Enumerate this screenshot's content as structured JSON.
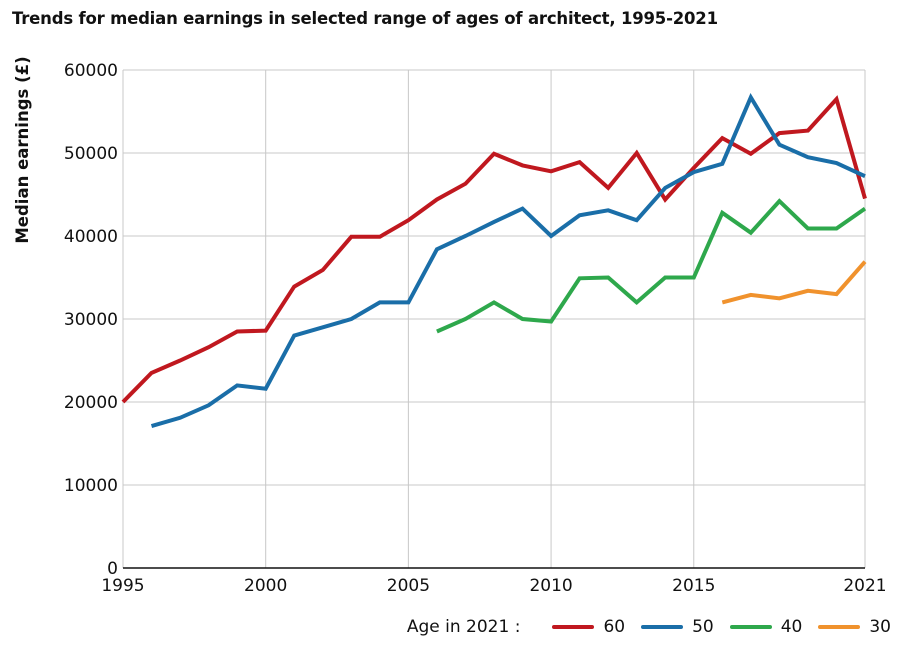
{
  "title": "Trends for median earnings in selected range of ages of architect, 1995-2021",
  "legend": {
    "title": "Age in 2021 :"
  },
  "colors": {
    "grid": "#c8c8c8",
    "axis": "#111111"
  },
  "chart_data": {
    "type": "line",
    "title": "Trends for median earnings in selected range of ages of architect, 1995-2021",
    "xlabel": "",
    "ylabel": "Median earnings (£)",
    "xlim": [
      1995,
      2021
    ],
    "ylim": [
      0,
      60000
    ],
    "x_ticks": [
      1995,
      2000,
      2005,
      2010,
      2015,
      2021
    ],
    "y_ticks": [
      0,
      10000,
      20000,
      30000,
      40000,
      50000,
      60000
    ],
    "grid": true,
    "legend_position": "bottom-right",
    "series": [
      {
        "name": "60",
        "color": "#c0181f",
        "points": [
          [
            1995,
            20000
          ],
          [
            1996,
            23500
          ],
          [
            1997,
            25000
          ],
          [
            1998,
            26600
          ],
          [
            1999,
            28500
          ],
          [
            2000,
            28600
          ],
          [
            2001,
            33900
          ],
          [
            2002,
            35900
          ],
          [
            2003,
            39900
          ],
          [
            2004,
            39900
          ],
          [
            2005,
            41900
          ],
          [
            2006,
            44400
          ],
          [
            2007,
            46300
          ],
          [
            2008,
            49900
          ],
          [
            2009,
            48500
          ],
          [
            2010,
            47800
          ],
          [
            2011,
            48900
          ],
          [
            2012,
            45800
          ],
          [
            2013,
            50000
          ],
          [
            2014,
            44400
          ],
          [
            2015,
            48200
          ],
          [
            2016,
            51800
          ],
          [
            2017,
            49900
          ],
          [
            2018,
            52400
          ],
          [
            2019,
            52700
          ],
          [
            2020,
            56500
          ],
          [
            2021,
            44500
          ]
        ]
      },
      {
        "name": "50",
        "color": "#1a6ea8",
        "points": [
          [
            1996,
            17100
          ],
          [
            1997,
            18100
          ],
          [
            1998,
            19600
          ],
          [
            1999,
            22000
          ],
          [
            2000,
            21600
          ],
          [
            2001,
            28000
          ],
          [
            2002,
            29000
          ],
          [
            2003,
            30000
          ],
          [
            2004,
            32000
          ],
          [
            2005,
            32000
          ],
          [
            2006,
            38400
          ],
          [
            2007,
            40000
          ],
          [
            2008,
            41700
          ],
          [
            2009,
            43300
          ],
          [
            2010,
            40000
          ],
          [
            2011,
            42500
          ],
          [
            2012,
            43100
          ],
          [
            2013,
            41900
          ],
          [
            2014,
            45800
          ],
          [
            2015,
            47700
          ],
          [
            2016,
            48700
          ],
          [
            2017,
            56700
          ],
          [
            2018,
            51000
          ],
          [
            2019,
            49500
          ],
          [
            2020,
            48800
          ],
          [
            2021,
            47200
          ]
        ]
      },
      {
        "name": "40",
        "color": "#2ea84c",
        "points": [
          [
            2006,
            28500
          ],
          [
            2007,
            30000
          ],
          [
            2008,
            32000
          ],
          [
            2009,
            30000
          ],
          [
            2010,
            29700
          ],
          [
            2011,
            34900
          ],
          [
            2012,
            35000
          ],
          [
            2013,
            32000
          ],
          [
            2014,
            35000
          ],
          [
            2015,
            35000
          ],
          [
            2016,
            42800
          ],
          [
            2017,
            40400
          ],
          [
            2018,
            44200
          ],
          [
            2019,
            40900
          ],
          [
            2020,
            40900
          ],
          [
            2021,
            43300
          ]
        ]
      },
      {
        "name": "30",
        "color": "#f0922d",
        "points": [
          [
            2016,
            32000
          ],
          [
            2017,
            32900
          ],
          [
            2018,
            32500
          ],
          [
            2019,
            33400
          ],
          [
            2020,
            33000
          ],
          [
            2021,
            36900
          ]
        ]
      }
    ]
  }
}
